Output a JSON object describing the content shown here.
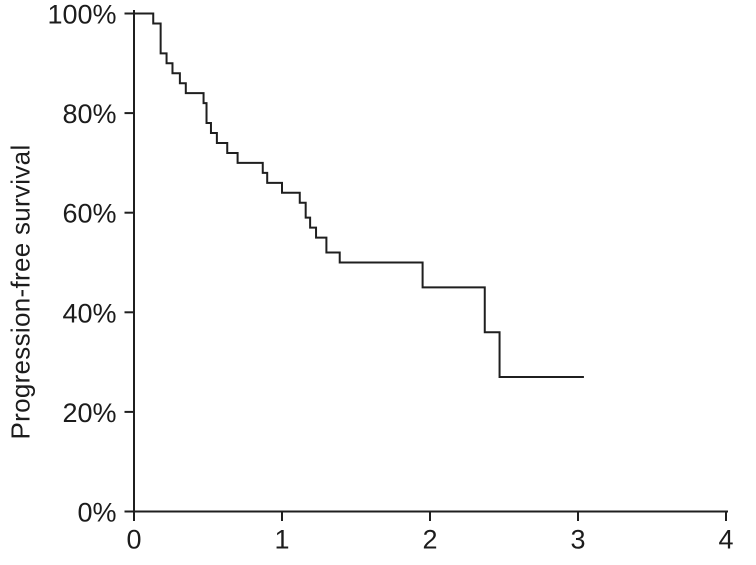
{
  "figure": {
    "background_color": "#ffffff",
    "line_color": "#1f1f1f",
    "text_color": "#1c1c1c"
  },
  "chart_data": {
    "type": "line",
    "subtype": "kaplan-meier-step-curve",
    "title": "",
    "xlabel": "",
    "ylabel": "Progression-free survival",
    "xlim": [
      0,
      4
    ],
    "ylim": [
      0,
      100
    ],
    "x_ticks": [
      0,
      1,
      2,
      3,
      4
    ],
    "x_tick_labels": [
      "0",
      "1",
      "2",
      "3",
      "4"
    ],
    "y_ticks": [
      0,
      20,
      40,
      60,
      80,
      100
    ],
    "y_tick_labels": [
      "0%",
      "20%",
      "40%",
      "60%",
      "80%",
      "100%"
    ],
    "grid": false,
    "legend": null,
    "series": [
      {
        "name": "Progression-free survival",
        "step_points": [
          [
            0.0,
            100
          ],
          [
            0.13,
            98
          ],
          [
            0.18,
            92
          ],
          [
            0.22,
            90
          ],
          [
            0.26,
            88
          ],
          [
            0.31,
            86
          ],
          [
            0.35,
            84
          ],
          [
            0.47,
            82
          ],
          [
            0.49,
            78
          ],
          [
            0.52,
            76
          ],
          [
            0.56,
            74
          ],
          [
            0.63,
            72
          ],
          [
            0.7,
            70
          ],
          [
            0.87,
            68
          ],
          [
            0.9,
            66
          ],
          [
            1.0,
            64
          ],
          [
            1.12,
            62
          ],
          [
            1.16,
            59
          ],
          [
            1.19,
            57
          ],
          [
            1.23,
            55
          ],
          [
            1.3,
            52
          ],
          [
            1.39,
            50
          ],
          [
            1.95,
            45
          ],
          [
            2.37,
            36
          ],
          [
            2.47,
            27
          ]
        ],
        "end_time": 3.04
      }
    ]
  }
}
